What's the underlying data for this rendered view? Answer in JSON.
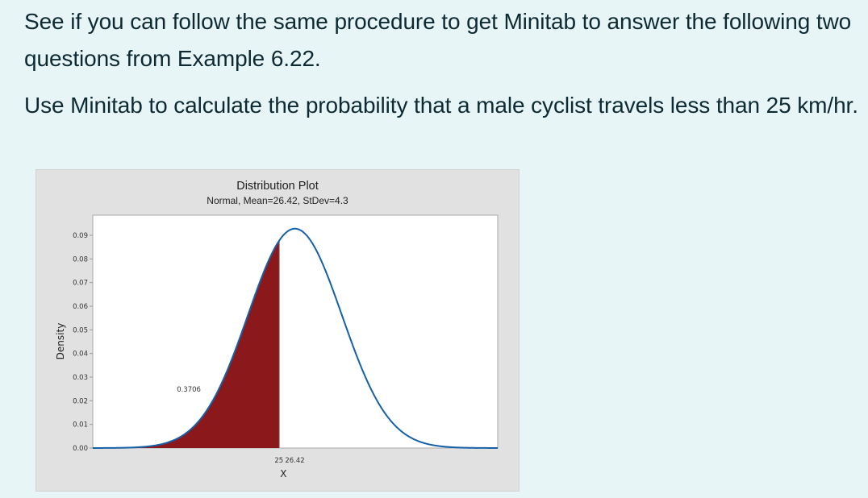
{
  "text": {
    "paragraph1": "See if you can follow the same procedure to get Minitab to answer the following two questions from Example 6.22.",
    "paragraph2": "Use Minitab to calculate the probability that a male cyclist travels less than 25 km/hr."
  },
  "colors": {
    "page_background": "#e8f5f7",
    "text": "#0d2a33",
    "chart_background": "#e1e1e1",
    "plot_background": "#ffffff",
    "curve": "#1560a8",
    "shaded_area": "#8b181b"
  },
  "chart_data": {
    "type": "area",
    "title": "Distribution Plot",
    "subtitle": "Normal, Mean=26.42, StDev=4.3",
    "distribution": "normal",
    "mean": 26.42,
    "stdev": 4.3,
    "xlabel": "X",
    "ylabel": "Density",
    "x_tick_labels": [
      "25",
      "26.42"
    ],
    "x_ticks": [
      25,
      26.42
    ],
    "y_ticks": [
      0.0,
      0.01,
      0.02,
      0.03,
      0.04,
      0.05,
      0.06,
      0.07,
      0.08,
      0.09
    ],
    "y_tick_labels": [
      "0.00",
      "0.01",
      "0.02",
      "0.03",
      "0.04",
      "0.05",
      "0.06",
      "0.07",
      "0.08",
      "0.09"
    ],
    "xlim": [
      7.9,
      45.0
    ],
    "ylim": [
      0.0,
      0.0985
    ],
    "peak_density": 0.0928,
    "shaded_region": {
      "from": "-inf",
      "to": 25,
      "probability": 0.3706
    },
    "annotation": "0.3706",
    "grid": false,
    "legend": "none"
  }
}
